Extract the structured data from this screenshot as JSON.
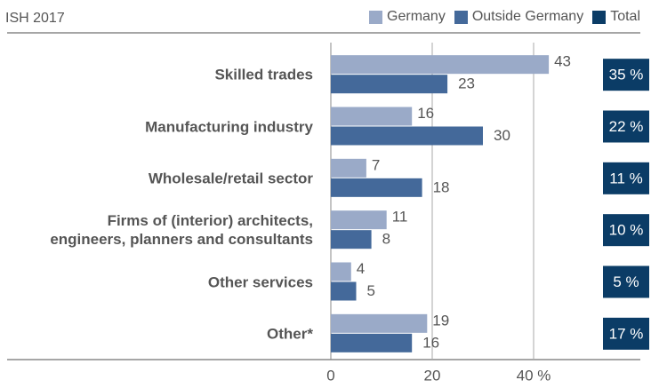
{
  "chart_data": {
    "type": "bar",
    "orientation": "horizontal",
    "title": "ISH 2017",
    "categories": [
      "Skilled trades",
      "Manufacturing industry",
      "Wholesale/retail sector",
      "Firms of (interior) architects,\nengineers, planners and consultants",
      "Other services",
      "Other*"
    ],
    "series": [
      {
        "name": "Germany",
        "color": "#9aaac8",
        "values": [
          43,
          16,
          7,
          11,
          4,
          19
        ]
      },
      {
        "name": "Outside Germany",
        "color": "#44699a",
        "values": [
          23,
          30,
          18,
          8,
          5,
          16
        ]
      }
    ],
    "total": {
      "name": "Total",
      "color": "#0b3c66",
      "values": [
        35,
        22,
        11,
        10,
        5,
        17
      ],
      "value_labels": [
        "35 %",
        "22 %",
        "11 %",
        "10 %",
        "5 %",
        "17 %"
      ]
    },
    "xlim": [
      0,
      60
    ],
    "xticks": [
      0,
      20,
      {
        "value": 40,
        "label": "40 %"
      }
    ],
    "grid": true
  }
}
